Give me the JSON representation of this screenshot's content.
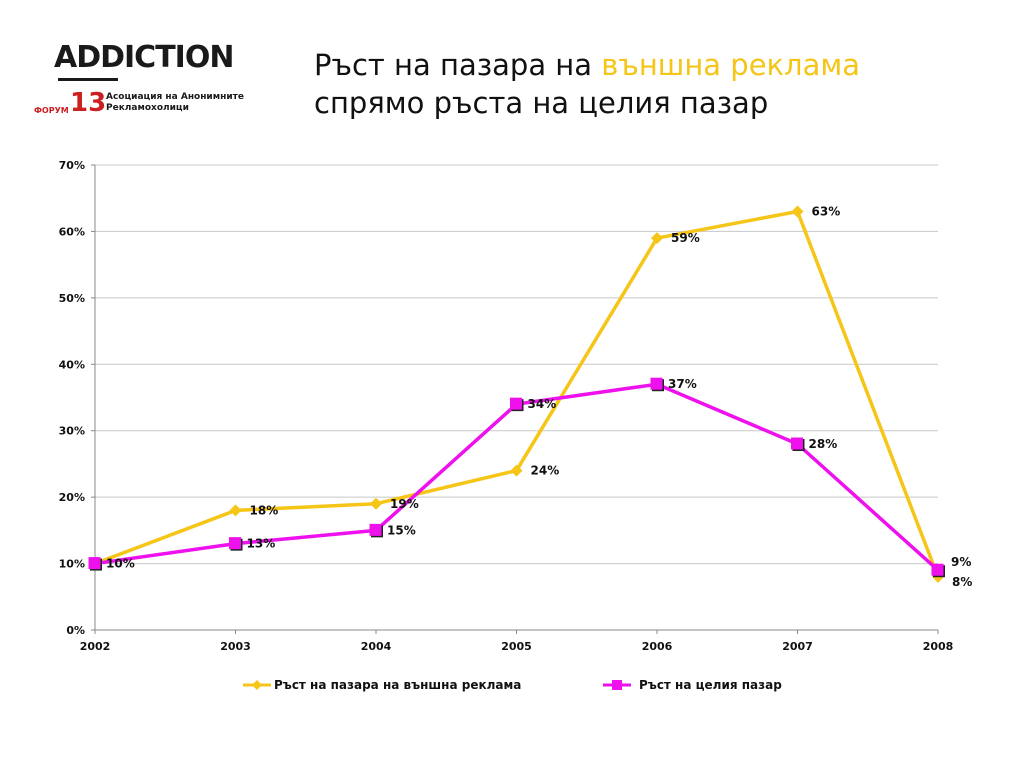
{
  "logo": {
    "brand": "ADDICTION",
    "forum": "ФОРУМ",
    "number": "13",
    "association": "Асоциация на Анонимните Рекламохолици"
  },
  "slide_title": {
    "line1_prefix": "Ръст на пазара на",
    "line1_accent": "външна реклама",
    "line2": "спрямо ръста на целия пазар"
  },
  "colors": {
    "series_outdoor": "#f5c518",
    "series_total": "#ee11ee",
    "grid": "#c8c8c8",
    "title_accent": "#f5c518"
  },
  "chart_data": {
    "type": "line",
    "title": "",
    "xlabel": "",
    "ylabel": "",
    "categories": [
      "2002",
      "2003",
      "2004",
      "2005",
      "2006",
      "2007",
      "2008"
    ],
    "ylim": [
      0,
      70
    ],
    "yticks": [
      "0%",
      "10%",
      "20%",
      "30%",
      "40%",
      "50%",
      "60%",
      "70%"
    ],
    "grid": true,
    "legend_position": "bottom",
    "series": [
      {
        "name": "Ръст на пазара на външна реклама",
        "values": [
          10,
          18,
          19,
          24,
          59,
          63,
          8
        ],
        "labels": [
          "",
          "18%",
          "19%",
          "24%",
          "59%",
          "63%",
          "8%"
        ],
        "marker": "diamond",
        "color": "#f5c518"
      },
      {
        "name": "Ръст на целия пазар",
        "values": [
          10,
          13,
          15,
          34,
          37,
          28,
          9
        ],
        "labels": [
          "10%",
          "13%",
          "15%",
          "34%",
          "37%",
          "28%",
          "9%"
        ],
        "marker": "square",
        "color": "#ee11ee"
      }
    ]
  }
}
